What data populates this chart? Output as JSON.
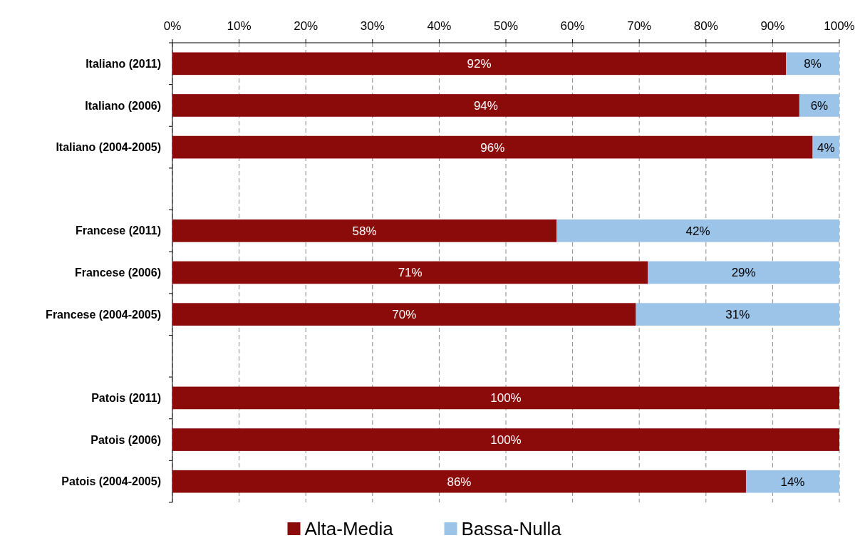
{
  "chart_data": {
    "type": "bar",
    "orientation": "horizontal",
    "stacked": true,
    "categories": [
      "Italiano (2011)",
      "Italiano (2006)",
      "Italiano (2004-2005)",
      null,
      "Francese (2011)",
      "Francese (2006)",
      "Francese (2004-2005)",
      null,
      "Patois (2011)",
      "Patois (2006)",
      "Patois (2004-2005)"
    ],
    "series": [
      {
        "name": "Alta-Media",
        "color": "#8b0a0a",
        "values": [
          92,
          94,
          96,
          null,
          57.6,
          71.3,
          69.5,
          null,
          100,
          100,
          86
        ],
        "value_labels": [
          "92%",
          "94%",
          "96%",
          null,
          "58%",
          "71%",
          "70%",
          null,
          "100%",
          "100%",
          "86%"
        ]
      },
      {
        "name": "Bassa-Nulla",
        "color": "#9cc3e8",
        "values": [
          8,
          6,
          4,
          null,
          42.4,
          28.7,
          30.5,
          null,
          null,
          null,
          14
        ],
        "value_labels": [
          "8%",
          "6%",
          "4%",
          null,
          "42%",
          "29%",
          "31%",
          null,
          null,
          null,
          "14%"
        ]
      }
    ],
    "xlim": [
      0,
      100
    ],
    "xticks": [
      {
        "value": 0,
        "label": "0%"
      },
      {
        "value": 10,
        "label": "10%"
      },
      {
        "value": 20,
        "label": "20%"
      },
      {
        "value": 30,
        "label": "30%"
      },
      {
        "value": 40,
        "label": "40%"
      },
      {
        "value": 50,
        "label": "50%"
      },
      {
        "value": 60,
        "label": "60%"
      },
      {
        "value": 70,
        "label": "70%"
      },
      {
        "value": 80,
        "label": "80%"
      },
      {
        "value": 90,
        "label": "90%"
      },
      {
        "value": 100,
        "label": "100%"
      }
    ],
    "grid": "x",
    "legend": "bottom"
  }
}
